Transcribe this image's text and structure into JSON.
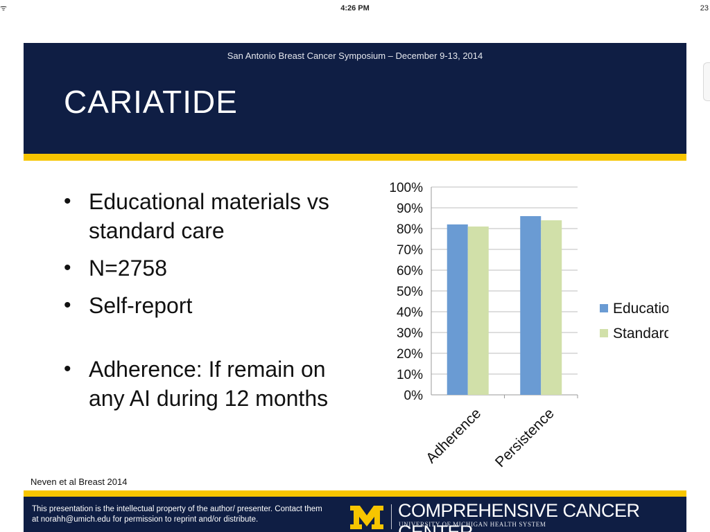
{
  "status_bar": {
    "signal": "ᯤ",
    "time": "4:26 PM",
    "battery": "23"
  },
  "slide": {
    "event": "San Antonio Breast Cancer Symposium – December 9-13, 2014",
    "title": "CARIATIDE",
    "bullets": [
      "Educational materials vs standard care",
      "N=2758",
      "Self-report",
      "Adherence: If remain on any AI during 12 months"
    ],
    "citation": "Neven et al  Breast 2014",
    "footer": {
      "notice": "This presentation is the intellectual property of the author/ presenter.  Contact them at norahh@umich.edu for permission to  reprint and/or distribute.",
      "logo_letter": "M",
      "org_name": "COMPREHENSIVE CANCER CENTER",
      "org_sub": "UNIVERSITY OF MICHIGAN HEALTH SYSTEM"
    }
  },
  "chart_data": {
    "type": "bar",
    "categories": [
      "Adherence",
      "Persistence"
    ],
    "series": [
      {
        "name": "Education",
        "values": [
          82,
          86
        ],
        "color": "#6a9bd3"
      },
      {
        "name": "Standard",
        "values": [
          81,
          84
        ],
        "color": "#d1e0a9"
      }
    ],
    "ylim": [
      0,
      100
    ],
    "yticks": [
      "0%",
      "10%",
      "20%",
      "30%",
      "40%",
      "50%",
      "60%",
      "70%",
      "80%",
      "90%",
      "100%"
    ],
    "grid": true,
    "legend": "right"
  }
}
